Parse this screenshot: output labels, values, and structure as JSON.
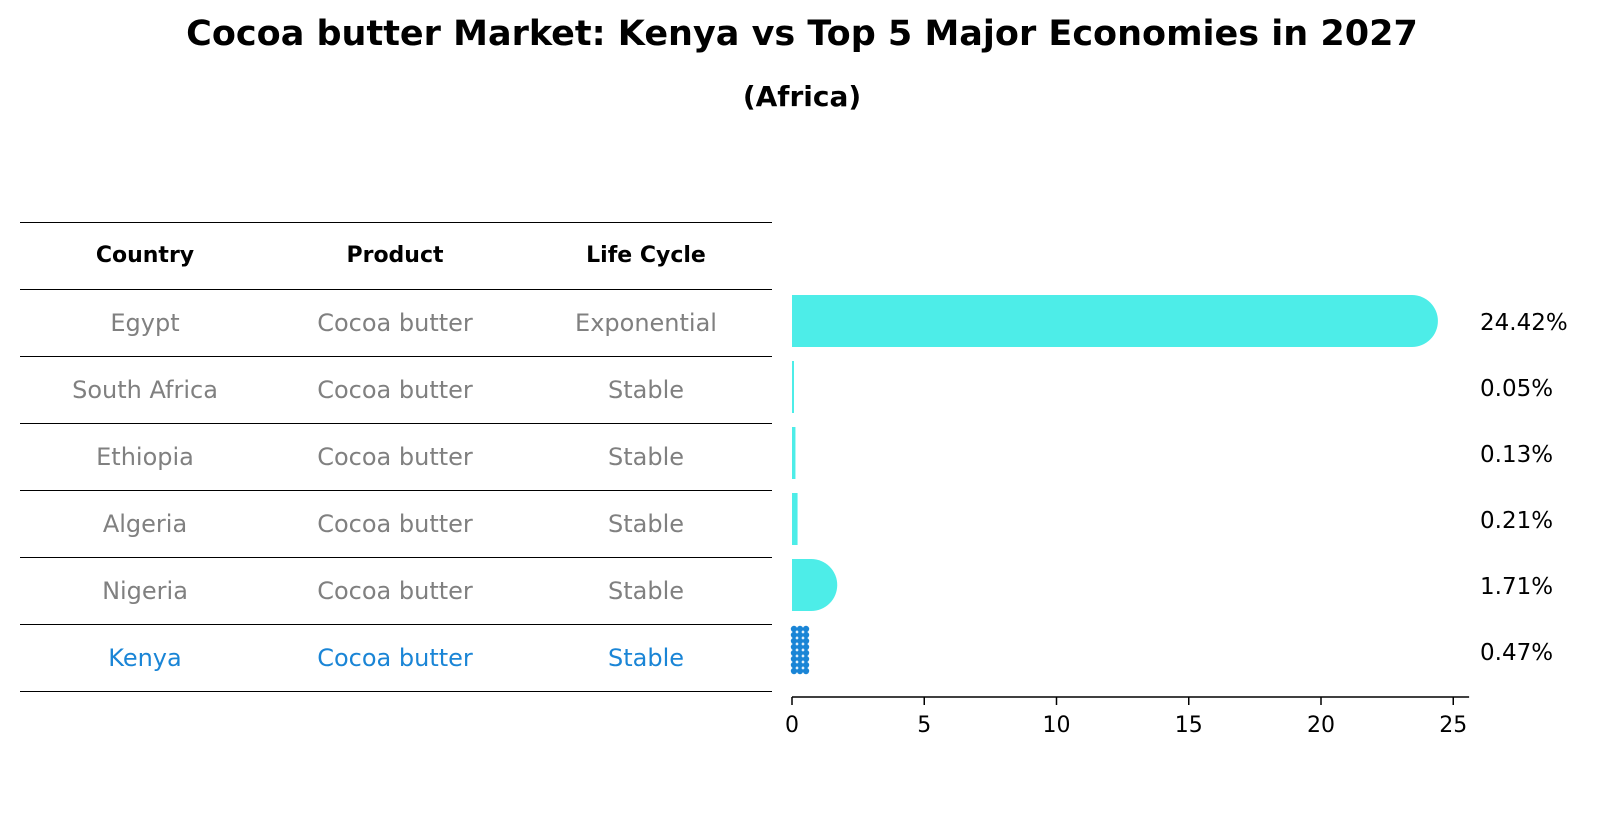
{
  "title": "Cocoa butter Market: Kenya vs Top 5 Major Economies in 2027",
  "subtitle": "(Africa)",
  "table": {
    "headers": [
      "Country",
      "Product",
      "Life Cycle"
    ],
    "rows": [
      [
        "Egypt",
        "Cocoa butter",
        "Exponential"
      ],
      [
        "South Africa",
        "Cocoa butter",
        "Stable"
      ],
      [
        "Ethiopia",
        "Cocoa butter",
        "Stable"
      ],
      [
        "Algeria",
        "Cocoa butter",
        "Stable"
      ],
      [
        "Nigeria",
        "Cocoa butter",
        "Stable"
      ],
      [
        "Kenya",
        "Cocoa butter",
        "Stable"
      ]
    ],
    "highlight_row": 5
  },
  "colors": {
    "bar": "#4dede8",
    "highlight_bar": "#1a85d6",
    "highlight_text": "#1a85d6",
    "muted_text": "#808080"
  },
  "chart_data": {
    "type": "bar",
    "orientation": "horizontal",
    "categories": [
      "Egypt",
      "South Africa",
      "Ethiopia",
      "Algeria",
      "Nigeria",
      "Kenya"
    ],
    "values": [
      24.42,
      0.05,
      0.13,
      0.21,
      1.71,
      0.47
    ],
    "value_labels": [
      "24.42%",
      "0.05%",
      "0.13%",
      "0.21%",
      "1.71%",
      "0.47%"
    ],
    "xticks": [
      0,
      5,
      10,
      15,
      20,
      25
    ],
    "xlim": [
      0,
      25.6
    ],
    "highlight": "Kenya"
  }
}
